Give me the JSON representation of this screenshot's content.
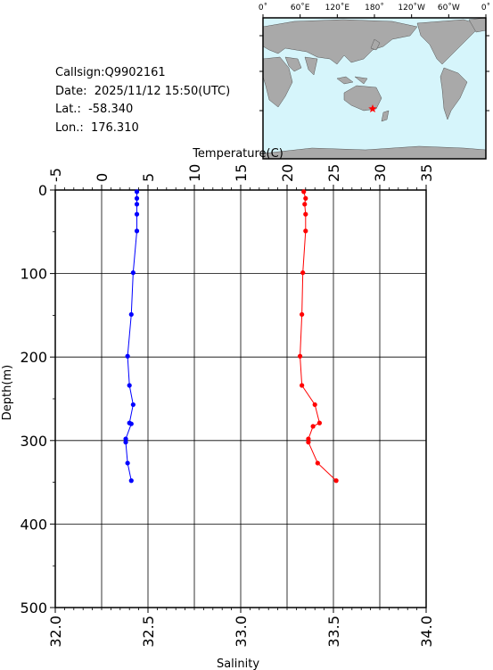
{
  "station": {
    "callsign": "Callsign:Q9902161",
    "date": "Date:  2025/11/12 15:50(UTC)",
    "lat": "Lat.:  -58.340",
    "lon": "Lon.:  176.310"
  },
  "map": {
    "top_ticks": [
      "0˚",
      "60˚E",
      "120˚E",
      "180˚",
      "120˚W",
      "60˚W",
      "0˚"
    ],
    "left_ticks": [
      "60˚N",
      "0˚",
      "60˚S"
    ],
    "ocean_color": "#d6f5fb",
    "land_color": "#a9a9a9",
    "marker_color": "#ff0000",
    "marker_icon": "star"
  },
  "chart_data": {
    "type": "line",
    "y_label": "Depth(m)",
    "y_range": [
      0,
      500
    ],
    "y_ticks": [
      "0",
      "100",
      "200",
      "300",
      "400",
      "500"
    ],
    "y_inverted": true,
    "top_axis": {
      "label": "Temperature(C)",
      "range": [
        -5,
        35
      ],
      "ticks": [
        "-5",
        "0",
        "5",
        "10",
        "15",
        "20",
        "25",
        "30",
        "35"
      ]
    },
    "bottom_axis": {
      "label": "Salinity",
      "range": [
        32.0,
        34.0
      ],
      "ticks": [
        "32.0",
        "32.5",
        "33.0",
        "33.5",
        "34.0"
      ]
    },
    "grid": true,
    "series": [
      {
        "axis": "bottom",
        "color": "#0000ff",
        "points": [
          [
            32.44,
            2
          ],
          [
            32.44,
            10
          ],
          [
            32.44,
            17
          ],
          [
            32.44,
            29
          ],
          [
            32.44,
            49
          ],
          [
            32.42,
            99
          ],
          [
            32.41,
            149
          ],
          [
            32.39,
            199
          ],
          [
            32.4,
            234
          ],
          [
            32.42,
            257
          ],
          [
            32.4,
            279
          ],
          [
            32.41,
            280
          ],
          [
            32.38,
            298
          ],
          [
            32.38,
            302
          ],
          [
            32.39,
            327
          ],
          [
            32.41,
            348
          ]
        ]
      },
      {
        "axis": "top",
        "color": "#ff0000",
        "points": [
          [
            21.8,
            2
          ],
          [
            22.0,
            10
          ],
          [
            21.9,
            17
          ],
          [
            22.0,
            29
          ],
          [
            22.0,
            49
          ],
          [
            21.7,
            99
          ],
          [
            21.6,
            149
          ],
          [
            21.4,
            199
          ],
          [
            21.6,
            234
          ],
          [
            23.0,
            257
          ],
          [
            23.5,
            279
          ],
          [
            22.8,
            283
          ],
          [
            22.3,
            298
          ],
          [
            22.3,
            302
          ],
          [
            23.3,
            327
          ],
          [
            25.3,
            348
          ]
        ]
      }
    ]
  }
}
